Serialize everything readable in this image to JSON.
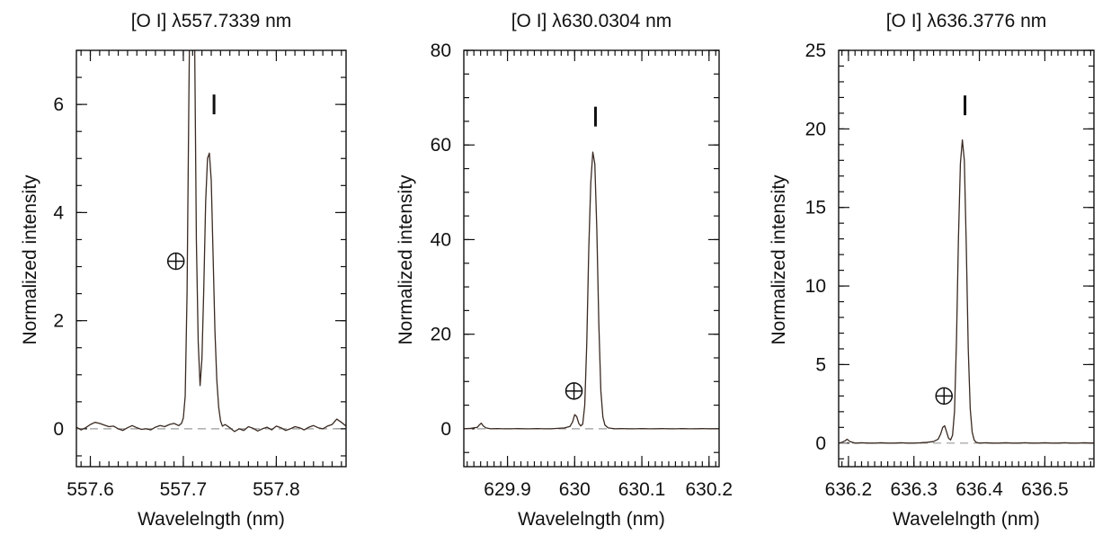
{
  "figure": {
    "colors": {
      "spectrum": "#3a2a22",
      "zero_line": "#9a9a9a",
      "frame": "#111111"
    },
    "icons": {
      "earth_marker": "circled-plus (telluric)",
      "comet_marker": "vertical-bar (cometary)"
    }
  },
  "chart_data": [
    {
      "type": "line",
      "title": "[O I] λ557.7339 nm",
      "xlabel": "Wavelelngth (nm)",
      "ylabel": "Normalized intensity",
      "xlim": [
        557.585,
        557.875
      ],
      "ylim": [
        -0.7,
        7.0
      ],
      "xticks": [
        557.6,
        557.7,
        557.8
      ],
      "xtick_labels": [
        "557.6",
        "557.7",
        "557.8"
      ],
      "yticks": [
        0,
        2,
        4,
        6
      ],
      "ytick_labels": [
        "0",
        "2",
        "4",
        "6"
      ],
      "x_minor_step": 0.01,
      "y_minor_step": 0.5,
      "zero_line": true,
      "earth_marker": {
        "x": 557.692,
        "y": 3.1
      },
      "comet_marker": {
        "x": 557.733,
        "y": 6.0
      },
      "series": [
        {
          "x": [
            557.585,
            557.59,
            557.595,
            557.6,
            557.605,
            557.61,
            557.615,
            557.62,
            557.625,
            557.63,
            557.635,
            557.64,
            557.645,
            557.65,
            557.655,
            557.66,
            557.665,
            557.67,
            557.675,
            557.68,
            557.685,
            557.69,
            557.695,
            557.698,
            557.7,
            557.702,
            557.704,
            557.706,
            557.708,
            557.71,
            557.712,
            557.714,
            557.716,
            557.718,
            557.72,
            557.722,
            557.724,
            557.726,
            557.728,
            557.73,
            557.732,
            557.734,
            557.736,
            557.738,
            557.74,
            557.742,
            557.745,
            557.75,
            557.755,
            557.76,
            557.765,
            557.77,
            557.775,
            557.78,
            557.785,
            557.79,
            557.795,
            557.8,
            557.805,
            557.81,
            557.815,
            557.82,
            557.825,
            557.83,
            557.835,
            557.84,
            557.845,
            557.85,
            557.855,
            557.86,
            557.865,
            557.87,
            557.875
          ],
          "y": [
            0.03,
            -0.02,
            0.02,
            0.08,
            0.12,
            0.1,
            0.07,
            0.04,
            0.05,
            0.0,
            -0.03,
            0.02,
            0.06,
            0.02,
            -0.01,
            0.0,
            -0.02,
            0.03,
            0.06,
            0.04,
            0.08,
            0.1,
            0.06,
            0.1,
            0.2,
            0.6,
            2.5,
            6.2,
            9.5,
            11.0,
            7.5,
            3.5,
            1.6,
            0.8,
            1.3,
            2.6,
            4.2,
            5.0,
            5.1,
            4.6,
            3.2,
            1.8,
            0.9,
            0.4,
            0.15,
            0.05,
            0.08,
            0.02,
            -0.05,
            0.0,
            -0.03,
            0.04,
            0.01,
            -0.04,
            0.0,
            0.03,
            -0.02,
            0.05,
            0.02,
            -0.03,
            0.0,
            0.04,
            0.02,
            -0.02,
            0.03,
            0.06,
            0.02,
            0.0,
            0.05,
            0.08,
            0.18,
            0.12,
            0.05
          ]
        }
      ]
    },
    {
      "type": "line",
      "title": "[O I] λ630.0304 nm",
      "xlabel": "Wavelelngth (nm)",
      "ylabel": "Normalized intensity",
      "xlim": [
        629.835,
        630.215
      ],
      "ylim": [
        -8.0,
        80.0
      ],
      "xticks": [
        629.9,
        630.0,
        630.1,
        630.2
      ],
      "xtick_labels": [
        "629.9",
        "630",
        "630.1",
        "630.2"
      ],
      "yticks": [
        0,
        20,
        40,
        60,
        80
      ],
      "ytick_labels": [
        "0",
        "20",
        "40",
        "60",
        "80"
      ],
      "x_minor_step": 0.01,
      "y_minor_step": 5,
      "zero_line": true,
      "earth_marker": {
        "x": 629.999,
        "y": 8.0
      },
      "comet_marker": {
        "x": 630.031,
        "y": 66.0
      },
      "series": [
        {
          "x": [
            629.835,
            629.845,
            629.855,
            629.858,
            629.861,
            629.864,
            629.868,
            629.875,
            629.885,
            629.895,
            629.905,
            629.915,
            629.925,
            629.935,
            629.945,
            629.955,
            629.965,
            629.975,
            629.985,
            629.993,
            629.997,
            630.0,
            630.003,
            630.006,
            630.009,
            630.012,
            630.015,
            630.018,
            630.021,
            630.024,
            630.027,
            630.03,
            630.033,
            630.036,
            630.039,
            630.042,
            630.045,
            630.05,
            630.06,
            630.07,
            630.08,
            630.09,
            630.1,
            630.11,
            630.12,
            630.13,
            630.14,
            630.15,
            630.16,
            630.17,
            630.18,
            630.19,
            630.2,
            630.215
          ],
          "y": [
            0.0,
            0.1,
            0.3,
            0.8,
            1.2,
            0.6,
            0.2,
            0.0,
            0.05,
            0.0,
            0.0,
            0.05,
            0.0,
            0.0,
            0.05,
            0.0,
            0.0,
            0.1,
            0.2,
            0.5,
            1.5,
            3.0,
            2.6,
            1.2,
            0.6,
            1.0,
            5.0,
            18.0,
            38.0,
            52.0,
            58.5,
            56.0,
            42.0,
            22.0,
            8.0,
            2.5,
            0.8,
            0.2,
            0.0,
            0.05,
            0.0,
            0.0,
            0.05,
            0.0,
            0.0,
            0.05,
            0.0,
            0.0,
            0.05,
            0.0,
            0.0,
            0.05,
            0.0,
            0.0
          ]
        }
      ]
    },
    {
      "type": "line",
      "title": "[O I] λ636.3776 nm",
      "xlabel": "Wavelelngth (nm)",
      "ylabel": "Normalized intensity",
      "xlim": [
        636.185,
        636.575
      ],
      "ylim": [
        -1.5,
        25.0
      ],
      "xticks": [
        636.2,
        636.3,
        636.4,
        636.5
      ],
      "xtick_labels": [
        "636.2",
        "636.3",
        "636.4",
        "636.5"
      ],
      "yticks": [
        0,
        5,
        10,
        15,
        20,
        25
      ],
      "ytick_labels": [
        "0",
        "5",
        "10",
        "15",
        "20",
        "25"
      ],
      "x_minor_step": 0.01,
      "y_minor_step": 1,
      "zero_line": true,
      "earth_marker": {
        "x": 636.346,
        "y": 3.0
      },
      "comet_marker": {
        "x": 636.378,
        "y": 21.5
      },
      "series": [
        {
          "x": [
            636.185,
            636.19,
            636.195,
            636.198,
            636.202,
            636.21,
            636.22,
            636.23,
            636.24,
            636.25,
            636.26,
            636.27,
            636.28,
            636.29,
            636.3,
            636.31,
            636.32,
            636.33,
            636.337,
            636.341,
            636.344,
            636.347,
            636.35,
            636.353,
            636.356,
            636.359,
            636.362,
            636.365,
            636.368,
            636.371,
            636.374,
            636.377,
            636.38,
            636.383,
            636.386,
            636.389,
            636.392,
            636.395,
            636.4,
            636.41,
            636.42,
            636.43,
            636.44,
            636.45,
            636.46,
            636.47,
            636.48,
            636.49,
            636.5,
            636.51,
            636.52,
            636.53,
            636.54,
            636.55,
            636.56,
            636.575
          ],
          "y": [
            0.0,
            0.05,
            0.15,
            0.25,
            0.1,
            0.0,
            0.02,
            0.0,
            0.0,
            0.02,
            0.0,
            0.0,
            0.02,
            0.0,
            0.0,
            0.02,
            0.05,
            0.1,
            0.25,
            0.6,
            1.0,
            1.1,
            0.7,
            0.3,
            0.2,
            0.5,
            2.0,
            6.5,
            13.0,
            17.8,
            19.3,
            18.0,
            12.5,
            6.0,
            2.2,
            0.7,
            0.2,
            0.05,
            0.0,
            0.02,
            0.0,
            0.0,
            0.02,
            0.0,
            0.0,
            0.02,
            0.0,
            0.0,
            0.02,
            0.0,
            0.0,
            0.02,
            0.0,
            0.0,
            0.02,
            0.0
          ]
        }
      ]
    }
  ]
}
